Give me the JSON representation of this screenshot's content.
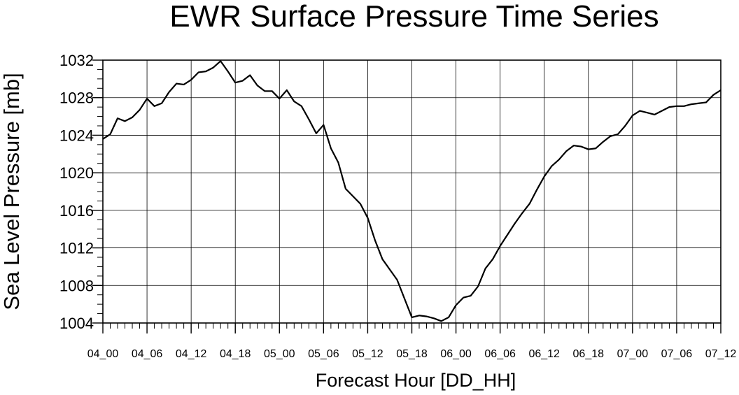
{
  "chart_data": {
    "type": "line",
    "title": "EWR Surface Pressure Time Series",
    "xlabel": "Forecast Hour [DD_HH]",
    "ylabel": "Sea Level Pressure [mb]",
    "ylim": [
      1004,
      1032
    ],
    "yticks": [
      "1004",
      "1008",
      "1012",
      "1016",
      "1020",
      "1024",
      "1028",
      "1032"
    ],
    "xticks": [
      "04_00",
      "04_06",
      "04_12",
      "04_18",
      "05_00",
      "05_06",
      "05_12",
      "05_18",
      "06_00",
      "06_06",
      "06_12",
      "06_18",
      "07_00",
      "07_06",
      "07_12"
    ],
    "grid": true,
    "series": [
      {
        "x": [
          0,
          1,
          2,
          3,
          4,
          5,
          6,
          7,
          8,
          9,
          10,
          11,
          12,
          13,
          14,
          15,
          16,
          17,
          18,
          19,
          20,
          21,
          22,
          23,
          24,
          25,
          26,
          27,
          28,
          29,
          30,
          31,
          32,
          33,
          34,
          35,
          36,
          37,
          38,
          39,
          40,
          41,
          42,
          43,
          44,
          45,
          46,
          47,
          48,
          49,
          50,
          51,
          52,
          53,
          54,
          55,
          56,
          57,
          58,
          59,
          60,
          61,
          62,
          63,
          64,
          65,
          66,
          67,
          68,
          69,
          70,
          71,
          72,
          73,
          74,
          75,
          76,
          77,
          78,
          79,
          80,
          81,
          82,
          83,
          84
        ],
        "values": [
          1023.6,
          1024.1,
          1025.8,
          1025.5,
          1025.9,
          1026.7,
          1027.9,
          1027.1,
          1027.4,
          1028.6,
          1029.5,
          1029.4,
          1029.9,
          1030.7,
          1030.8,
          1031.2,
          1031.9,
          1030.8,
          1029.6,
          1029.8,
          1030.4,
          1029.3,
          1028.7,
          1028.7,
          1027.9,
          1028.8,
          1027.6,
          1027.1,
          1025.7,
          1024.2,
          1025.1,
          1022.6,
          1021.1,
          1018.3,
          1017.5,
          1016.7,
          1015.2,
          1012.8,
          1010.8,
          1009.7,
          1008.6,
          1006.6,
          1004.6,
          1004.8,
          1004.7,
          1004.5,
          1004.2,
          1004.6,
          1005.9,
          1006.7,
          1006.9,
          1007.9,
          1009.8,
          1010.8,
          1012.2,
          1013.4,
          1014.6,
          1015.7,
          1016.7,
          1018.2,
          1019.6,
          1020.7,
          1021.4,
          1022.3,
          1022.9,
          1022.8,
          1022.5,
          1022.6,
          1023.3,
          1023.9,
          1024.1,
          1025.0,
          1026.1,
          1026.6,
          1026.4,
          1026.2,
          1026.6,
          1027.0,
          1027.1,
          1027.1,
          1027.3,
          1027.4,
          1027.5,
          1028.3,
          1028.8
        ]
      }
    ]
  }
}
